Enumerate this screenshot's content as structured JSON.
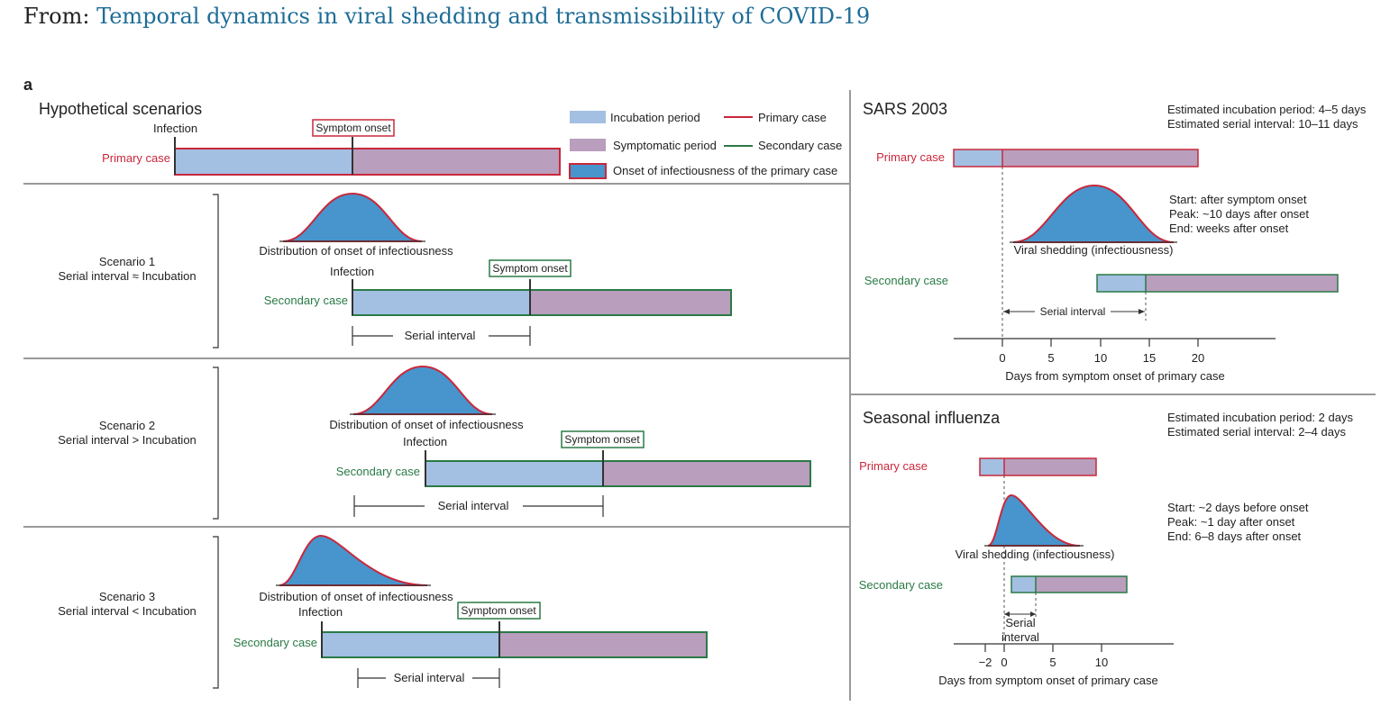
{
  "header": {
    "from_label": "From:",
    "article_link": "Temporal dynamics in viral shedding and transmissibility of COVID-19"
  },
  "panel_label": "a",
  "hypothetical": {
    "title": "Hypothetical scenarios",
    "primary_label": "Primary case",
    "infection_label": "Infection",
    "symptom_onset_label": "Symptom onset",
    "distribution_label": "Distribution of onset of infectiousness",
    "secondary_label": "Secondary case",
    "serial_interval_label": "Serial interval",
    "scenarios": [
      {
        "name": "Scenario 1",
        "relation": "Serial interval ≈ Incubation"
      },
      {
        "name": "Scenario 2",
        "relation": "Serial interval > Incubation"
      },
      {
        "name": "Scenario 3",
        "relation": "Serial interval < Incubation"
      }
    ]
  },
  "legend": {
    "incubation": "Incubation period",
    "symptomatic": "Symptomatic period",
    "onset_infectiousness": "Onset of infectiousness of the primary case",
    "primary": "Primary case",
    "secondary": "Secondary case"
  },
  "colors": {
    "incubation": "#a3bfe2",
    "symptomatic": "#b99ebd",
    "infectiousness": "#4795cc",
    "primary": "#c8283c",
    "secondary": "#2a7a46"
  },
  "sars": {
    "title": "SARS 2003",
    "estimated_incubation": "Estimated incubation period: 4–5 days",
    "estimated_serial": "Estimated serial interval: 10–11 days",
    "primary_label": "Primary case",
    "secondary_label": "Secondary case",
    "shedding_label": "Viral shedding (infectiousness)",
    "shedding_notes": [
      "Start: after symptom onset",
      "Peak: ~10 days after onset",
      "End: weeks after onset"
    ],
    "serial_interval_label": "Serial interval",
    "axis_label": "Days from symptom onset of primary case",
    "ticks": [
      "0",
      "5",
      "10",
      "15",
      "20"
    ]
  },
  "influenza": {
    "title": "Seasonal influenza",
    "estimated_incubation": "Estimated incubation period: 2 days",
    "estimated_serial": "Estimated serial interval: 2–4 days",
    "primary_label": "Primary case",
    "secondary_label": "Secondary case",
    "shedding_label": "Viral shedding (infectiousness)",
    "shedding_notes": [
      "Start: ~2 days before onset",
      "Peak: ~1 day after onset",
      "End: 6–8 days after onset"
    ],
    "serial_interval_line1": "Serial",
    "serial_interval_line2": "interval",
    "axis_label": "Days from symptom onset of primary case",
    "ticks": [
      "−2",
      "0",
      "5",
      "10"
    ]
  }
}
